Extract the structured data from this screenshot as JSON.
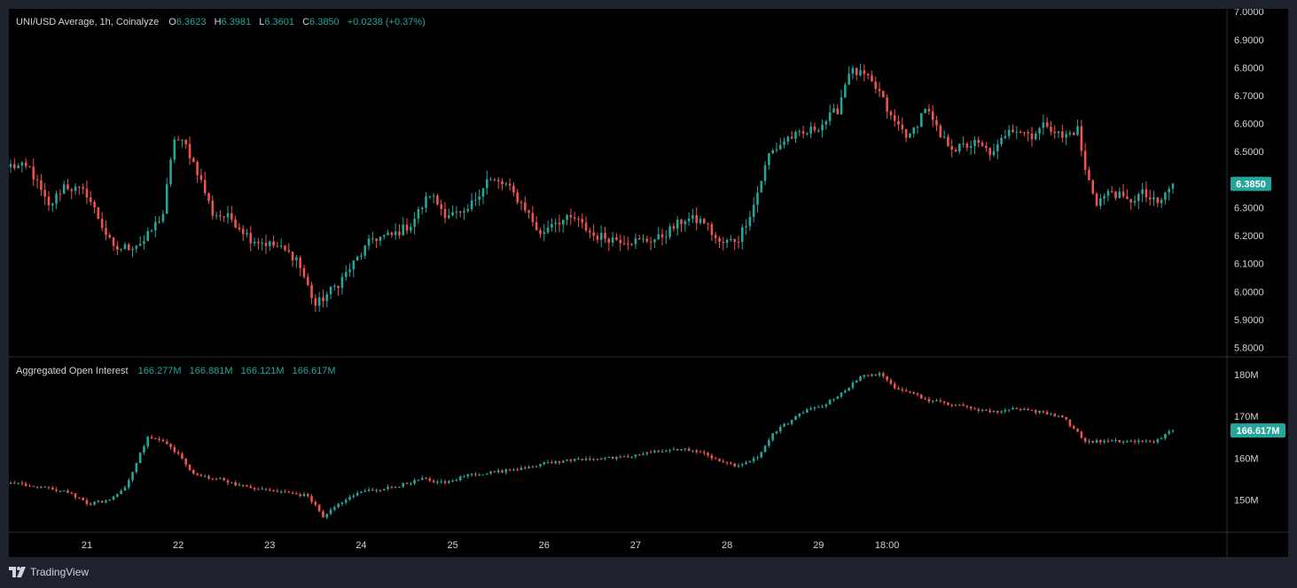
{
  "legend": {
    "title": "UNI/USD Average, 1h, Coinalyze",
    "o_label": "O",
    "o_value": "6.3623",
    "h_label": "H",
    "h_value": "6.3981",
    "l_label": "L",
    "l_value": "6.3601",
    "c_label": "C",
    "c_value": "6.3850",
    "change": "+0.0238 (+0.37%)"
  },
  "oi_legend": {
    "title": "Aggregated Open Interest",
    "v1": "166.277M",
    "v2": "166.881M",
    "v3": "166.121M",
    "v4": "166.617M"
  },
  "price_badge": "6.3850",
  "oi_badge": "166.617M",
  "footer": {
    "brand": "TradingView"
  },
  "colors": {
    "up": "#26a69a",
    "down": "#ef5350",
    "background": "#000000",
    "frame": "#1e222d"
  },
  "chart_data": [
    {
      "type": "candlestick",
      "name": "UNI/USD Average, 1h",
      "y_ticks": [
        "7.0000",
        "6.9000",
        "6.8000",
        "6.7000",
        "6.6000",
        "6.5000",
        "6.4000",
        "6.3000",
        "6.2000",
        "6.1000",
        "6.0000",
        "5.9000",
        "5.8000"
      ],
      "ylim": [
        5.77,
        7.01
      ],
      "x_ticks": [
        "21",
        "22",
        "23",
        "24",
        "25",
        "26",
        "27",
        "28",
        "29",
        "18:00"
      ],
      "last_close": 6.385,
      "close_keypoints": [
        [
          0,
          6.45
        ],
        [
          5,
          6.44
        ],
        [
          10,
          6.3
        ],
        [
          14,
          6.38
        ],
        [
          20,
          6.35
        ],
        [
          27,
          6.15
        ],
        [
          31,
          6.16
        ],
        [
          35,
          6.18
        ],
        [
          40,
          6.28
        ],
        [
          43,
          6.55
        ],
        [
          46,
          6.52
        ],
        [
          49,
          6.43
        ],
        [
          53,
          6.28
        ],
        [
          58,
          6.26
        ],
        [
          63,
          6.19
        ],
        [
          70,
          6.16
        ],
        [
          75,
          6.12
        ],
        [
          80,
          5.95
        ],
        [
          86,
          6.03
        ],
        [
          90,
          6.1
        ],
        [
          95,
          6.19
        ],
        [
          100,
          6.2
        ],
        [
          105,
          6.24
        ],
        [
          110,
          6.35
        ],
        [
          114,
          6.28
        ],
        [
          119,
          6.27
        ],
        [
          125,
          6.4
        ],
        [
          130,
          6.38
        ],
        [
          135,
          6.3
        ],
        [
          139,
          6.2
        ],
        [
          142,
          6.25
        ],
        [
          148,
          6.26
        ],
        [
          153,
          6.2
        ],
        [
          158,
          6.19
        ],
        [
          165,
          6.18
        ],
        [
          170,
          6.19
        ],
        [
          177,
          6.26
        ],
        [
          182,
          6.25
        ],
        [
          186,
          6.17
        ],
        [
          191,
          6.19
        ],
        [
          195,
          6.31
        ],
        [
          199,
          6.49
        ],
        [
          204,
          6.55
        ],
        [
          208,
          6.56
        ],
        [
          213,
          6.6
        ],
        [
          217,
          6.65
        ],
        [
          220,
          6.79
        ],
        [
          224,
          6.77
        ],
        [
          228,
          6.71
        ],
        [
          231,
          6.62
        ],
        [
          236,
          6.55
        ],
        [
          240,
          6.66
        ],
        [
          244,
          6.55
        ],
        [
          248,
          6.51
        ],
        [
          253,
          6.53
        ],
        [
          258,
          6.49
        ],
        [
          262,
          6.59
        ],
        [
          268,
          6.56
        ],
        [
          272,
          6.6
        ],
        [
          276,
          6.55
        ],
        [
          280,
          6.58
        ],
        [
          282,
          6.43
        ],
        [
          285,
          6.32
        ],
        [
          289,
          6.36
        ],
        [
          293,
          6.32
        ],
        [
          297,
          6.35
        ],
        [
          301,
          6.31
        ],
        [
          305,
          6.385
        ]
      ]
    },
    {
      "type": "candlestick",
      "name": "Aggregated Open Interest",
      "y_ticks": [
        "180M",
        "170M",
        "160M",
        "150M"
      ],
      "ylim": [
        142.5,
        184
      ],
      "last_close": 166.617,
      "close_keypoints": [
        [
          0,
          154
        ],
        [
          8,
          153
        ],
        [
          15,
          152
        ],
        [
          20,
          149
        ],
        [
          26,
          150
        ],
        [
          30,
          153
        ],
        [
          36,
          165
        ],
        [
          40,
          164
        ],
        [
          44,
          161
        ],
        [
          48,
          156
        ],
        [
          55,
          155
        ],
        [
          62,
          153
        ],
        [
          70,
          152
        ],
        [
          78,
          151
        ],
        [
          82,
          146
        ],
        [
          86,
          149
        ],
        [
          92,
          152
        ],
        [
          100,
          153
        ],
        [
          108,
          155
        ],
        [
          114,
          154
        ],
        [
          120,
          156
        ],
        [
          130,
          157
        ],
        [
          136,
          158
        ],
        [
          142,
          159
        ],
        [
          152,
          160
        ],
        [
          160,
          160
        ],
        [
          166,
          161
        ],
        [
          172,
          162
        ],
        [
          178,
          162
        ],
        [
          182,
          161
        ],
        [
          190,
          158
        ],
        [
          196,
          160
        ],
        [
          200,
          166
        ],
        [
          208,
          171
        ],
        [
          214,
          173
        ],
        [
          220,
          177
        ],
        [
          224,
          180
        ],
        [
          228,
          180
        ],
        [
          232,
          177
        ],
        [
          236,
          176
        ],
        [
          240,
          174
        ],
        [
          246,
          173
        ],
        [
          252,
          172
        ],
        [
          258,
          171
        ],
        [
          264,
          172
        ],
        [
          270,
          171
        ],
        [
          276,
          170
        ],
        [
          282,
          164
        ],
        [
          288,
          164
        ],
        [
          294,
          164
        ],
        [
          300,
          164
        ],
        [
          305,
          166.6
        ]
      ]
    }
  ]
}
